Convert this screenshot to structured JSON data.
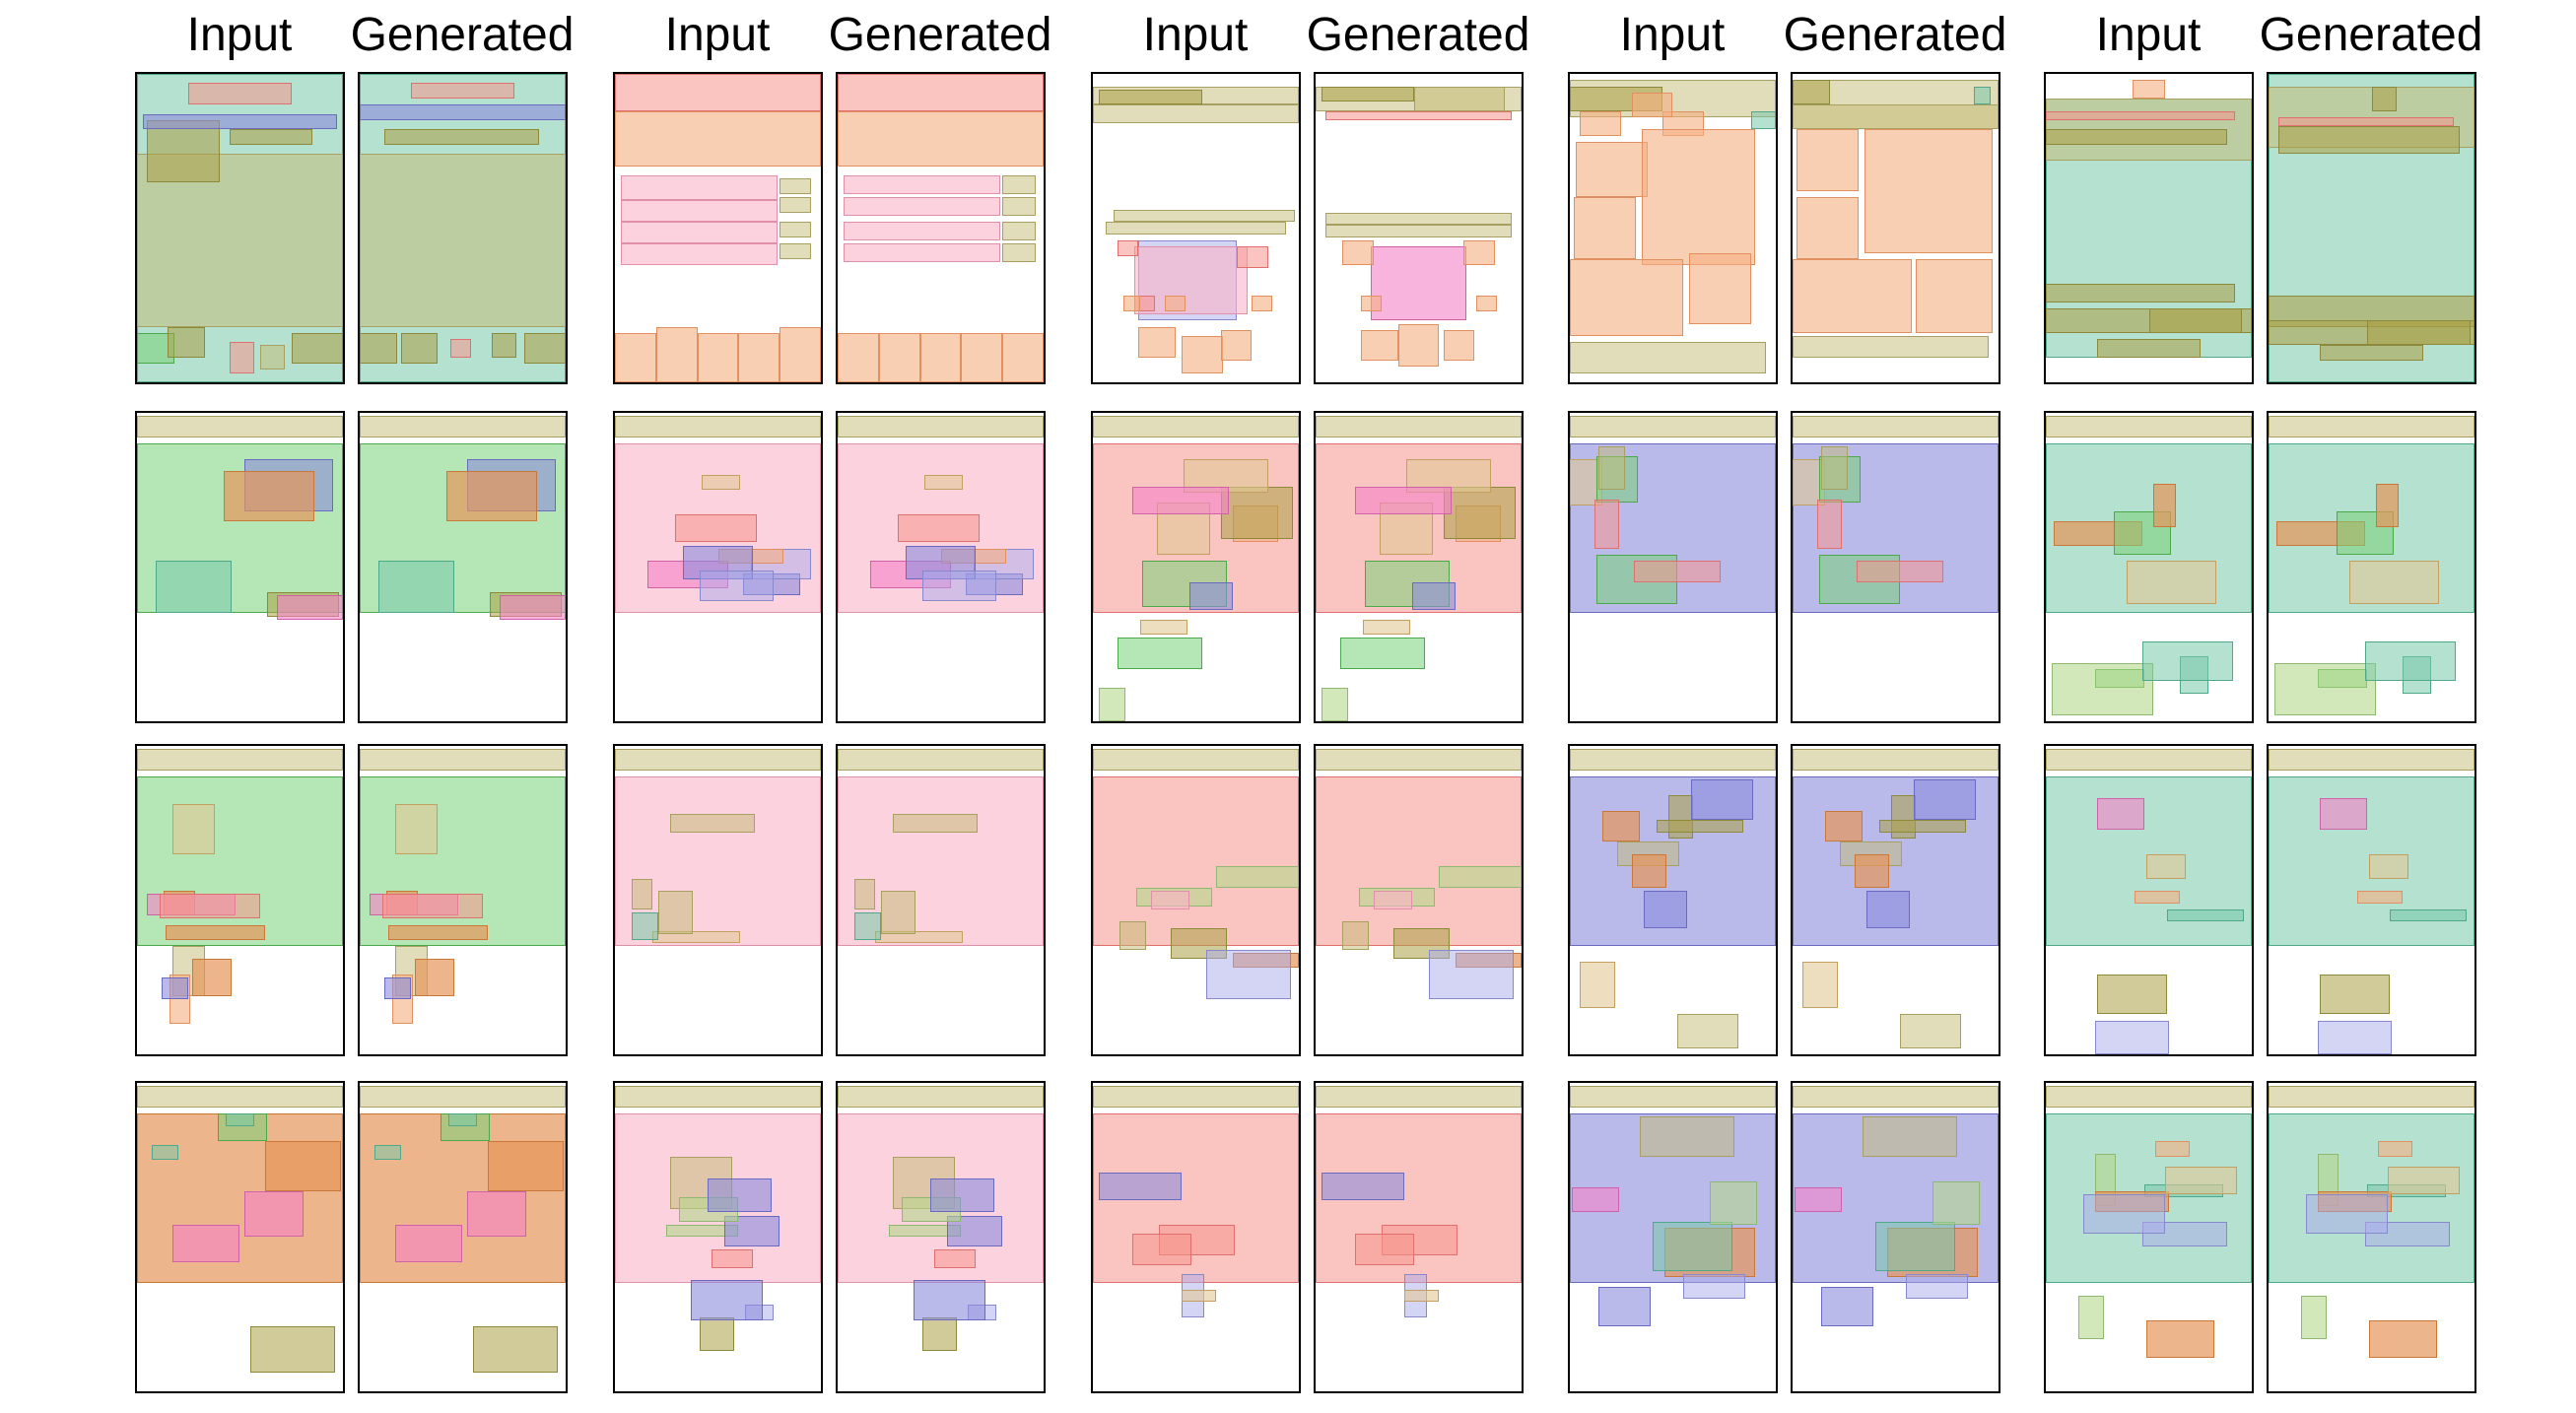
{
  "headers": [
    "Input",
    "Generated",
    "Input",
    "Generated",
    "Input",
    "Generated",
    "Input",
    "Generated",
    "Input",
    "Generated"
  ],
  "palette": {
    "teal": [
      "rgba(120,200,170,0.55)",
      "#4fa88a"
    ],
    "olive": [
      "rgba(170,160,70,0.55)",
      "#8c8a3a"
    ],
    "khaki": [
      "rgba(195,185,115,0.5)",
      "#a8a060"
    ],
    "salmon": [
      "rgba(245,150,140,0.55)",
      "#e07070"
    ],
    "peach": [
      "rgba(245,175,130,0.6)",
      "#e29060"
    ],
    "orange": [
      "rgba(230,150,90,0.7)",
      "#c9783a"
    ],
    "green": [
      "rgba(120,210,120,0.55)",
      "#4aaa4a"
    ],
    "lgreen": [
      "rgba(180,215,140,0.6)",
      "#8fb870"
    ],
    "blue": [
      "rgba(140,140,220,0.6)",
      "#6a6ac0"
    ],
    "lblue": [
      "rgba(170,170,235,0.5)",
      "#8888cc"
    ],
    "pink": [
      "rgba(245,130,200,0.6)",
      "#d060a8"
    ],
    "lpink": [
      "rgba(250,180,200,0.6)",
      "#e090a8"
    ],
    "tan": [
      "rgba(225,200,150,0.6)",
      "#c4a060"
    ]
  },
  "rows": [
    [
      [
        [
          "teal",
          0,
          0,
          100,
          100
        ],
        [
          "khaki",
          0,
          26,
          100,
          56
        ],
        [
          "olive",
          5,
          15,
          35,
          20
        ],
        [
          "blue",
          3,
          13,
          94,
          5
        ],
        [
          "salmon",
          25,
          3,
          50,
          7
        ],
        [
          "olive",
          45,
          18,
          40,
          5
        ],
        [
          "green",
          0,
          84,
          18,
          10
        ],
        [
          "olive",
          15,
          82,
          18,
          10
        ],
        [
          "salmon",
          45,
          87,
          12,
          10
        ],
        [
          "olive",
          75,
          84,
          25,
          10
        ],
        [
          "khaki",
          60,
          88,
          12,
          8
        ]
      ],
      [
        [
          "teal",
          0,
          0,
          100,
          100
        ],
        [
          "khaki",
          0,
          26,
          100,
          56
        ],
        [
          "blue",
          0,
          10,
          100,
          5
        ],
        [
          "salmon",
          25,
          3,
          50,
          5
        ],
        [
          "olive",
          12,
          18,
          75,
          5
        ],
        [
          "olive",
          0,
          84,
          18,
          10
        ],
        [
          "olive",
          20,
          84,
          18,
          10
        ],
        [
          "salmon",
          44,
          86,
          10,
          6
        ],
        [
          "olive",
          64,
          84,
          12,
          8
        ],
        [
          "olive",
          80,
          84,
          20,
          10
        ]
      ]
    ],
    [
      [
        [
          "salmon",
          0,
          0,
          100,
          12
        ],
        [
          "peach",
          0,
          12,
          100,
          18
        ],
        [
          "lpink",
          3,
          33,
          76,
          8
        ],
        [
          "lpink",
          3,
          41,
          76,
          7
        ],
        [
          "lpink",
          3,
          48,
          76,
          7
        ],
        [
          "lpink",
          3,
          55,
          76,
          7
        ],
        [
          "khaki",
          80,
          34,
          15,
          5
        ],
        [
          "khaki",
          80,
          40,
          15,
          5
        ],
        [
          "khaki",
          80,
          48,
          15,
          5
        ],
        [
          "khaki",
          80,
          55,
          15,
          5
        ],
        [
          "peach",
          0,
          84,
          20,
          16
        ],
        [
          "peach",
          20,
          82,
          20,
          18
        ],
        [
          "peach",
          40,
          84,
          20,
          16
        ],
        [
          "peach",
          60,
          84,
          20,
          16
        ],
        [
          "peach",
          80,
          82,
          20,
          18
        ]
      ],
      [
        [
          "salmon",
          0,
          0,
          100,
          12
        ],
        [
          "peach",
          0,
          12,
          100,
          18
        ],
        [
          "lpink",
          3,
          33,
          76,
          6
        ],
        [
          "lpink",
          3,
          40,
          76,
          6
        ],
        [
          "lpink",
          3,
          48,
          76,
          6
        ],
        [
          "lpink",
          3,
          55,
          76,
          6
        ],
        [
          "khaki",
          80,
          33,
          16,
          6
        ],
        [
          "khaki",
          80,
          40,
          16,
          6
        ],
        [
          "khaki",
          80,
          48,
          16,
          6
        ],
        [
          "khaki",
          80,
          55,
          16,
          6
        ],
        [
          "peach",
          0,
          84,
          20,
          16
        ],
        [
          "peach",
          20,
          84,
          20,
          16
        ],
        [
          "peach",
          40,
          84,
          20,
          16
        ],
        [
          "peach",
          60,
          84,
          20,
          16
        ],
        [
          "peach",
          80,
          84,
          20,
          16
        ]
      ]
    ],
    [
      [
        [
          "khaki",
          0,
          4,
          100,
          6
        ],
        [
          "olive",
          3,
          5,
          50,
          5
        ],
        [
          "khaki",
          0,
          10,
          100,
          6
        ],
        [
          "khaki",
          10,
          44,
          88,
          4
        ],
        [
          "khaki",
          6,
          48,
          88,
          4
        ],
        [
          "lblue",
          22,
          54,
          48,
          26
        ],
        [
          "lpink",
          20,
          56,
          55,
          22
        ],
        [
          "salmon",
          12,
          54,
          10,
          5
        ],
        [
          "salmon",
          70,
          56,
          15,
          7
        ],
        [
          "salmon",
          20,
          72,
          10,
          5
        ],
        [
          "peach",
          35,
          72,
          10,
          5
        ],
        [
          "peach",
          22,
          82,
          18,
          10
        ],
        [
          "peach",
          43,
          85,
          20,
          12
        ],
        [
          "peach",
          62,
          83,
          15,
          10
        ],
        [
          "peach",
          77,
          72,
          10,
          5
        ],
        [
          "peach",
          15,
          72,
          8,
          5
        ]
      ],
      [
        [
          "khaki",
          0,
          4,
          100,
          8
        ],
        [
          "olive",
          3,
          4,
          45,
          5
        ],
        [
          "khaki",
          48,
          4,
          44,
          8
        ],
        [
          "salmon",
          5,
          12,
          90,
          3
        ],
        [
          "khaki",
          5,
          45,
          90,
          4
        ],
        [
          "khaki",
          5,
          49,
          90,
          4
        ],
        [
          "pink",
          27,
          56,
          46,
          24
        ],
        [
          "peach",
          13,
          54,
          15,
          8
        ],
        [
          "peach",
          72,
          54,
          15,
          8
        ],
        [
          "peach",
          22,
          72,
          10,
          5
        ],
        [
          "peach",
          78,
          72,
          10,
          5
        ],
        [
          "peach",
          22,
          83,
          18,
          10
        ],
        [
          "peach",
          40,
          81,
          20,
          14
        ],
        [
          "peach",
          62,
          83,
          15,
          10
        ]
      ]
    ],
    [
      [
        [
          "khaki",
          0,
          2,
          100,
          12
        ],
        [
          "olive",
          0,
          4,
          45,
          8
        ],
        [
          "peach",
          5,
          12,
          20,
          8
        ],
        [
          "peach",
          45,
          12,
          20,
          8
        ],
        [
          "peach",
          3,
          22,
          35,
          18
        ],
        [
          "peach",
          35,
          18,
          55,
          44
        ],
        [
          "peach",
          2,
          40,
          30,
          20
        ],
        [
          "peach",
          0,
          60,
          55,
          25
        ],
        [
          "peach",
          58,
          58,
          30,
          23
        ],
        [
          "khaki",
          0,
          87,
          95,
          10
        ],
        [
          "peach",
          30,
          6,
          20,
          8
        ],
        [
          "teal",
          88,
          12,
          12,
          6
        ]
      ],
      [
        [
          "khaki",
          0,
          2,
          100,
          16
        ],
        [
          "olive",
          0,
          2,
          18,
          8
        ],
        [
          "khaki",
          0,
          10,
          100,
          8
        ],
        [
          "peach",
          2,
          18,
          30,
          20
        ],
        [
          "peach",
          35,
          18,
          62,
          40
        ],
        [
          "peach",
          2,
          40,
          30,
          20
        ],
        [
          "peach",
          0,
          60,
          58,
          24
        ],
        [
          "peach",
          60,
          60,
          37,
          24
        ],
        [
          "khaki",
          0,
          85,
          95,
          7
        ],
        [
          "teal",
          88,
          4,
          8,
          6
        ]
      ]
    ],
    [
      [
        [
          "peach",
          42,
          2,
          16,
          6
        ],
        [
          "teal",
          0,
          8,
          100,
          84
        ],
        [
          "khaki",
          0,
          8,
          100,
          20
        ],
        [
          "salmon",
          0,
          12,
          92,
          3
        ],
        [
          "olive",
          0,
          18,
          88,
          5
        ],
        [
          "olive",
          0,
          68,
          92,
          6
        ],
        [
          "olive",
          0,
          76,
          100,
          8
        ],
        [
          "olive",
          50,
          76,
          45,
          8
        ],
        [
          "olive",
          25,
          86,
          50,
          6
        ]
      ],
      [
        [
          "teal",
          0,
          0,
          100,
          100
        ],
        [
          "khaki",
          0,
          4,
          100,
          20
        ],
        [
          "olive",
          50,
          4,
          12,
          8
        ],
        [
          "salmon",
          5,
          14,
          85,
          3
        ],
        [
          "olive",
          5,
          17,
          88,
          9
        ],
        [
          "olive",
          0,
          72,
          100,
          10
        ],
        [
          "olive",
          0,
          80,
          100,
          8
        ],
        [
          "olive",
          48,
          80,
          50,
          8
        ],
        [
          "olive",
          25,
          88,
          50,
          5
        ]
      ]
    ]
  ]
}
